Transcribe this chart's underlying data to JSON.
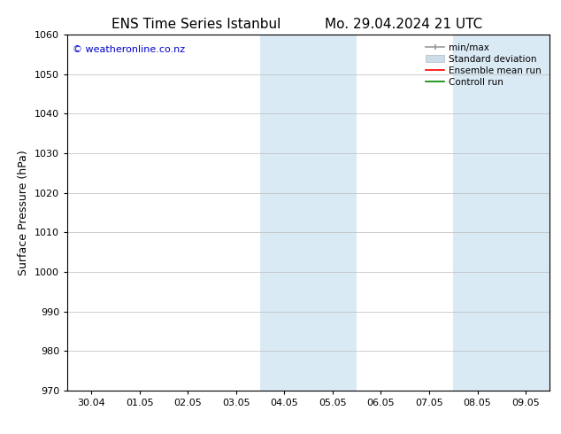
{
  "title_left": "ENS Time Series Istanbul",
  "title_right": "Mo. 29.04.2024 21 UTC",
  "ylabel": "Surface Pressure (hPa)",
  "ylim": [
    970,
    1060
  ],
  "yticks": [
    970,
    980,
    990,
    1000,
    1010,
    1020,
    1030,
    1040,
    1050,
    1060
  ],
  "xtick_labels": [
    "30.04",
    "01.05",
    "02.05",
    "03.05",
    "04.05",
    "05.05",
    "06.05",
    "07.05",
    "08.05",
    "09.05"
  ],
  "xtick_positions": [
    0,
    1,
    2,
    3,
    4,
    5,
    6,
    7,
    8,
    9
  ],
  "x_min": -0.5,
  "x_max": 9.5,
  "shaded_bands": [
    {
      "x_start": 3.5,
      "x_end": 5.5
    },
    {
      "x_start": 7.5,
      "x_end": 9.5
    }
  ],
  "shaded_color": "#daeaf5",
  "watermark": "© weatheronline.co.nz",
  "watermark_color": "#0000cc",
  "background_color": "#ffffff",
  "legend_entries": [
    {
      "label": "min/max",
      "color": "#aaaaaa",
      "lw": 1.5
    },
    {
      "label": "Standard deviation",
      "color": "#ccddee",
      "lw": 6
    },
    {
      "label": "Ensemble mean run",
      "color": "#ff0000",
      "lw": 1.5
    },
    {
      "label": "Controll run",
      "color": "#008800",
      "lw": 1.5
    }
  ],
  "tick_font_size": 8,
  "label_font_size": 9,
  "title_font_size": 11,
  "grid_color": "#bbbbbb",
  "spine_color": "#000000"
}
